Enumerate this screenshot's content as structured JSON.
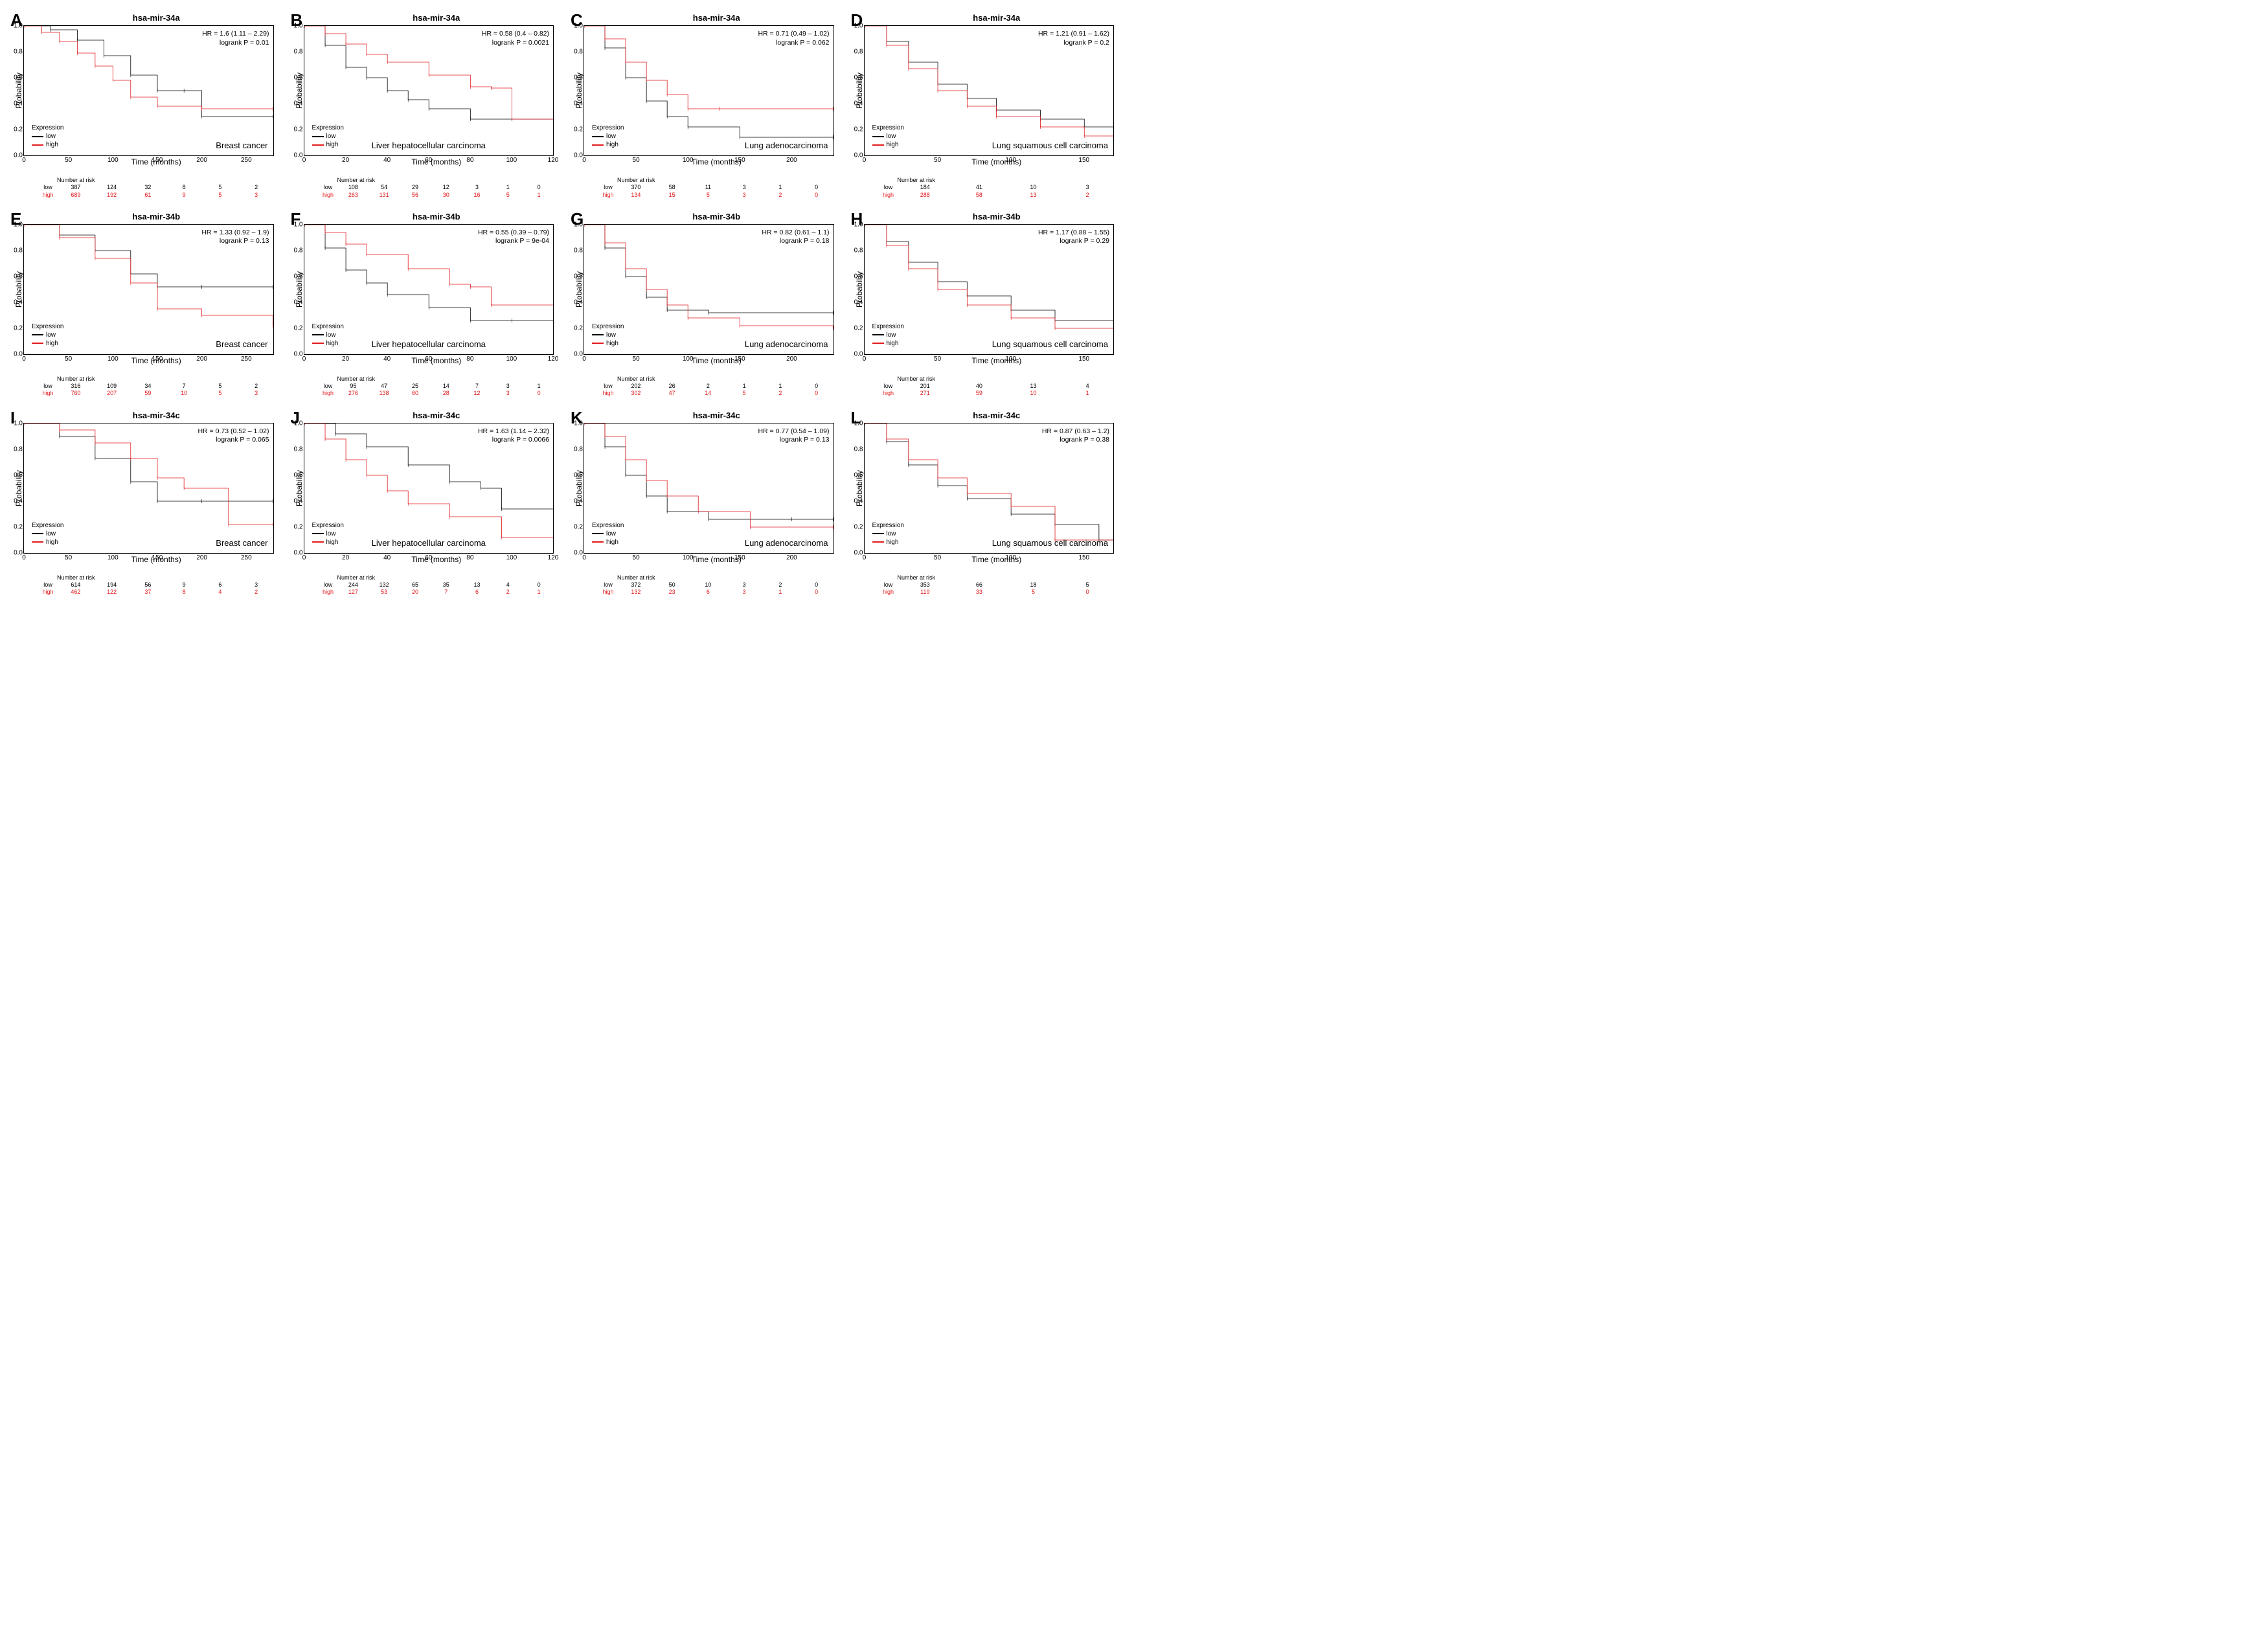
{
  "figure": {
    "ylabel": "Probability",
    "xlabel": "Time (months)",
    "legend_title": "Expression",
    "legend_low": "low",
    "legend_high": "high",
    "risk_header": "Number at risk",
    "low_label": "low",
    "high_label": "high",
    "color_low": "#000000",
    "color_high": "#e1191c",
    "background": "#ffffff",
    "border_color": "#000000",
    "yticks": [
      0.0,
      0.2,
      0.4,
      0.6,
      0.8,
      1.0
    ],
    "ytick_labels": [
      "0.0",
      "0.2",
      "0.4",
      "0.6",
      "0.8",
      "1.0"
    ],
    "axis_fontsize": 12,
    "title_fontsize": 13,
    "stats_fontsize": 10.5,
    "panel_letter_fontsize": 26
  },
  "panels": [
    {
      "letter": "A",
      "title": "hsa-mir-34a",
      "cancer": "Breast cancer",
      "cancer_pos": "br",
      "hr": "HR = 1.6 (1.11 – 2.29)",
      "logrank": "logrank P = 0.01",
      "xmax": 280,
      "xtick_step": 50,
      "risk_low": [
        "387",
        "124",
        "32",
        "8",
        "5",
        "2"
      ],
      "risk_high": [
        "689",
        "192",
        "61",
        "9",
        "5",
        "3"
      ],
      "low": [
        [
          0,
          1.0
        ],
        [
          30,
          0.97
        ],
        [
          60,
          0.89
        ],
        [
          90,
          0.77
        ],
        [
          120,
          0.62
        ],
        [
          150,
          0.5
        ],
        [
          180,
          0.5
        ],
        [
          200,
          0.3
        ],
        [
          280,
          0.3
        ]
      ],
      "high": [
        [
          0,
          1.0
        ],
        [
          20,
          0.95
        ],
        [
          40,
          0.88
        ],
        [
          60,
          0.79
        ],
        [
          80,
          0.69
        ],
        [
          100,
          0.58
        ],
        [
          120,
          0.45
        ],
        [
          150,
          0.38
        ],
        [
          200,
          0.36
        ],
        [
          280,
          0.36
        ]
      ]
    },
    {
      "letter": "B",
      "title": "hsa-mir-34a",
      "cancer": "Liver hepatocellular carcinoma",
      "cancer_pos": "bc",
      "hr": "HR = 0.58 (0.4 – 0.82)",
      "logrank": "logrank P = 0.0021",
      "xmax": 120,
      "xtick_step": 20,
      "risk_low": [
        "108",
        "54",
        "29",
        "12",
        "3",
        "1",
        "0"
      ],
      "risk_high": [
        "263",
        "131",
        "56",
        "30",
        "16",
        "5",
        "1"
      ],
      "low": [
        [
          0,
          1.0
        ],
        [
          10,
          0.85
        ],
        [
          20,
          0.68
        ],
        [
          30,
          0.6
        ],
        [
          40,
          0.5
        ],
        [
          50,
          0.43
        ],
        [
          60,
          0.36
        ],
        [
          80,
          0.28
        ],
        [
          100,
          0.28
        ],
        [
          120,
          0.22
        ]
      ],
      "high": [
        [
          0,
          1.0
        ],
        [
          10,
          0.94
        ],
        [
          20,
          0.86
        ],
        [
          30,
          0.78
        ],
        [
          40,
          0.72
        ],
        [
          60,
          0.62
        ],
        [
          80,
          0.53
        ],
        [
          90,
          0.52
        ],
        [
          100,
          0.28
        ],
        [
          120,
          0.2
        ]
      ]
    },
    {
      "letter": "C",
      "title": "hsa-mir-34a",
      "cancer": "Lung adenocarcinoma",
      "cancer_pos": "br",
      "hr": "HR = 0.71 (0.49 – 1.02)",
      "logrank": "logrank P = 0.062",
      "xmax": 240,
      "xtick_step": 50,
      "risk_low": [
        "370",
        "58",
        "11",
        "3",
        "1",
        "0"
      ],
      "risk_high": [
        "134",
        "15",
        "5",
        "3",
        "2",
        "0"
      ],
      "low": [
        [
          0,
          1.0
        ],
        [
          20,
          0.83
        ],
        [
          40,
          0.6
        ],
        [
          60,
          0.42
        ],
        [
          80,
          0.3
        ],
        [
          100,
          0.22
        ],
        [
          150,
          0.14
        ],
        [
          240,
          0.14
        ]
      ],
      "high": [
        [
          0,
          1.0
        ],
        [
          20,
          0.9
        ],
        [
          40,
          0.72
        ],
        [
          60,
          0.58
        ],
        [
          80,
          0.47
        ],
        [
          100,
          0.36
        ],
        [
          130,
          0.36
        ],
        [
          240,
          0.36
        ]
      ]
    },
    {
      "letter": "D",
      "title": "hsa-mir-34a",
      "cancer": "Lung squamous cell carcinoma",
      "cancer_pos": "br",
      "hr": "HR = 1.21 (0.91 – 1.62)",
      "logrank": "logrank P = 0.2",
      "xmax": 170,
      "xtick_step": 50,
      "risk_low": [
        "184",
        "41",
        "10",
        "3"
      ],
      "risk_high": [
        "288",
        "58",
        "13",
        "2"
      ],
      "low": [
        [
          0,
          1.0
        ],
        [
          15,
          0.88
        ],
        [
          30,
          0.72
        ],
        [
          50,
          0.55
        ],
        [
          70,
          0.44
        ],
        [
          90,
          0.35
        ],
        [
          120,
          0.28
        ],
        [
          150,
          0.22
        ],
        [
          170,
          0.22
        ]
      ],
      "high": [
        [
          0,
          1.0
        ],
        [
          15,
          0.85
        ],
        [
          30,
          0.67
        ],
        [
          50,
          0.5
        ],
        [
          70,
          0.38
        ],
        [
          90,
          0.3
        ],
        [
          120,
          0.22
        ],
        [
          150,
          0.15
        ],
        [
          170,
          0.08
        ]
      ]
    },
    {
      "letter": "E",
      "title": "hsa-mir-34b",
      "cancer": "Breast cancer",
      "cancer_pos": "br",
      "hr": "HR = 1.33 (0.92 – 1.9)",
      "logrank": "logrank P = 0.13",
      "xmax": 280,
      "xtick_step": 50,
      "risk_low": [
        "316",
        "109",
        "34",
        "7",
        "5",
        "2"
      ],
      "risk_high": [
        "760",
        "207",
        "59",
        "10",
        "5",
        "3"
      ],
      "low": [
        [
          0,
          1.0
        ],
        [
          40,
          0.92
        ],
        [
          80,
          0.8
        ],
        [
          120,
          0.62
        ],
        [
          150,
          0.52
        ],
        [
          200,
          0.52
        ],
        [
          280,
          0.52
        ]
      ],
      "high": [
        [
          0,
          1.0
        ],
        [
          40,
          0.9
        ],
        [
          80,
          0.74
        ],
        [
          120,
          0.55
        ],
        [
          150,
          0.35
        ],
        [
          200,
          0.3
        ],
        [
          280,
          0.22
        ]
      ]
    },
    {
      "letter": "F",
      "title": "hsa-mir-34b",
      "cancer": "Liver hepatocellular carcinoma",
      "cancer_pos": "bc",
      "hr": "HR = 0.55 (0.39 – 0.79)",
      "logrank": "logrank P = 9e-04",
      "xmax": 120,
      "xtick_step": 20,
      "risk_low": [
        "95",
        "47",
        "25",
        "14",
        "7",
        "3",
        "1"
      ],
      "risk_high": [
        "276",
        "138",
        "60",
        "28",
        "12",
        "3",
        "0"
      ],
      "low": [
        [
          0,
          1.0
        ],
        [
          10,
          0.82
        ],
        [
          20,
          0.65
        ],
        [
          30,
          0.55
        ],
        [
          40,
          0.46
        ],
        [
          60,
          0.36
        ],
        [
          80,
          0.26
        ],
        [
          100,
          0.26
        ],
        [
          120,
          0.2
        ]
      ],
      "high": [
        [
          0,
          1.0
        ],
        [
          10,
          0.94
        ],
        [
          20,
          0.85
        ],
        [
          30,
          0.77
        ],
        [
          50,
          0.66
        ],
        [
          70,
          0.54
        ],
        [
          80,
          0.52
        ],
        [
          90,
          0.38
        ],
        [
          120,
          0.25
        ]
      ]
    },
    {
      "letter": "G",
      "title": "hsa-mir-34b",
      "cancer": "Lung adenocarcinoma",
      "cancer_pos": "br",
      "hr": "HR = 0.82 (0.61 – 1.1)",
      "logrank": "logrank P = 0.18",
      "xmax": 240,
      "xtick_step": 50,
      "risk_low": [
        "202",
        "26",
        "2",
        "1",
        "1",
        "0"
      ],
      "risk_high": [
        "302",
        "47",
        "14",
        "5",
        "2",
        "0"
      ],
      "low": [
        [
          0,
          1.0
        ],
        [
          20,
          0.82
        ],
        [
          40,
          0.6
        ],
        [
          60,
          0.44
        ],
        [
          80,
          0.34
        ],
        [
          120,
          0.32
        ],
        [
          240,
          0.32
        ]
      ],
      "high": [
        [
          0,
          1.0
        ],
        [
          20,
          0.86
        ],
        [
          40,
          0.66
        ],
        [
          60,
          0.5
        ],
        [
          80,
          0.38
        ],
        [
          100,
          0.28
        ],
        [
          150,
          0.22
        ],
        [
          240,
          0.2
        ]
      ]
    },
    {
      "letter": "H",
      "title": "hsa-mir-34b",
      "cancer": "Lung squamous cell carcinoma",
      "cancer_pos": "br",
      "hr": "HR = 1.17 (0.88 – 1.55)",
      "logrank": "logrank P = 0.29",
      "xmax": 170,
      "xtick_step": 50,
      "risk_low": [
        "201",
        "40",
        "13",
        "4"
      ],
      "risk_high": [
        "271",
        "59",
        "10",
        "1"
      ],
      "low": [
        [
          0,
          1.0
        ],
        [
          15,
          0.87
        ],
        [
          30,
          0.71
        ],
        [
          50,
          0.56
        ],
        [
          70,
          0.45
        ],
        [
          100,
          0.34
        ],
        [
          130,
          0.26
        ],
        [
          170,
          0.26
        ]
      ],
      "high": [
        [
          0,
          1.0
        ],
        [
          15,
          0.84
        ],
        [
          30,
          0.66
        ],
        [
          50,
          0.5
        ],
        [
          70,
          0.38
        ],
        [
          100,
          0.28
        ],
        [
          130,
          0.2
        ],
        [
          170,
          0.14
        ]
      ]
    },
    {
      "letter": "I",
      "title": "hsa-mir-34c",
      "cancer": "Breast cancer",
      "cancer_pos": "br",
      "hr": "HR = 0.73 (0.52 – 1.02)",
      "logrank": "logrank P = 0.065",
      "xmax": 280,
      "xtick_step": 50,
      "risk_low": [
        "614",
        "194",
        "56",
        "9",
        "6",
        "3"
      ],
      "risk_high": [
        "462",
        "122",
        "37",
        "8",
        "4",
        "2"
      ],
      "low": [
        [
          0,
          1.0
        ],
        [
          40,
          0.9
        ],
        [
          80,
          0.73
        ],
        [
          120,
          0.55
        ],
        [
          150,
          0.4
        ],
        [
          200,
          0.4
        ],
        [
          280,
          0.4
        ]
      ],
      "high": [
        [
          0,
          1.0
        ],
        [
          40,
          0.95
        ],
        [
          80,
          0.85
        ],
        [
          120,
          0.73
        ],
        [
          150,
          0.58
        ],
        [
          180,
          0.5
        ],
        [
          230,
          0.22
        ],
        [
          280,
          0.22
        ]
      ]
    },
    {
      "letter": "J",
      "title": "hsa-mir-34c",
      "cancer": "Liver hepatocellular carcinoma",
      "cancer_pos": "bc",
      "hr": "HR = 1.63 (1.14 – 2.32)",
      "logrank": "logrank P = 0.0066",
      "xmax": 120,
      "xtick_step": 20,
      "risk_low": [
        "244",
        "132",
        "65",
        "35",
        "13",
        "4",
        "0"
      ],
      "risk_high": [
        "127",
        "53",
        "20",
        "7",
        "6",
        "2",
        "1"
      ],
      "low": [
        [
          0,
          1.0
        ],
        [
          15,
          0.92
        ],
        [
          30,
          0.82
        ],
        [
          50,
          0.68
        ],
        [
          70,
          0.55
        ],
        [
          85,
          0.5
        ],
        [
          95,
          0.34
        ],
        [
          120,
          0.25
        ]
      ],
      "high": [
        [
          0,
          1.0
        ],
        [
          10,
          0.88
        ],
        [
          20,
          0.72
        ],
        [
          30,
          0.6
        ],
        [
          40,
          0.48
        ],
        [
          50,
          0.38
        ],
        [
          70,
          0.28
        ],
        [
          95,
          0.12
        ],
        [
          120,
          0.12
        ]
      ]
    },
    {
      "letter": "K",
      "title": "hsa-mir-34c",
      "cancer": "Lung adenocarcinoma",
      "cancer_pos": "br",
      "hr": "HR = 0.77 (0.54 – 1.09)",
      "logrank": "logrank P = 0.13",
      "xmax": 240,
      "xtick_step": 50,
      "risk_low": [
        "372",
        "50",
        "10",
        "3",
        "2",
        "0"
      ],
      "risk_high": [
        "132",
        "23",
        "6",
        "3",
        "1",
        "0"
      ],
      "low": [
        [
          0,
          1.0
        ],
        [
          20,
          0.82
        ],
        [
          40,
          0.6
        ],
        [
          60,
          0.44
        ],
        [
          80,
          0.32
        ],
        [
          120,
          0.26
        ],
        [
          200,
          0.26
        ],
        [
          240,
          0.26
        ]
      ],
      "high": [
        [
          0,
          1.0
        ],
        [
          20,
          0.9
        ],
        [
          40,
          0.72
        ],
        [
          60,
          0.56
        ],
        [
          80,
          0.44
        ],
        [
          110,
          0.32
        ],
        [
          160,
          0.2
        ],
        [
          240,
          0.2
        ]
      ]
    },
    {
      "letter": "L",
      "title": "hsa-mir-34c",
      "cancer": "Lung squamous cell carcinoma",
      "cancer_pos": "br",
      "hr": "HR = 0.87 (0.63 – 1.2)",
      "logrank": "logrank P = 0.38",
      "xmax": 170,
      "xtick_step": 50,
      "risk_low": [
        "353",
        "66",
        "18",
        "5"
      ],
      "risk_high": [
        "119",
        "33",
        "5",
        "0"
      ],
      "low": [
        [
          0,
          1.0
        ],
        [
          15,
          0.86
        ],
        [
          30,
          0.68
        ],
        [
          50,
          0.52
        ],
        [
          70,
          0.42
        ],
        [
          100,
          0.3
        ],
        [
          130,
          0.22
        ],
        [
          160,
          0.1
        ],
        [
          170,
          0.1
        ]
      ],
      "high": [
        [
          0,
          1.0
        ],
        [
          15,
          0.88
        ],
        [
          30,
          0.72
        ],
        [
          50,
          0.58
        ],
        [
          70,
          0.46
        ],
        [
          100,
          0.36
        ],
        [
          130,
          0.1
        ],
        [
          170,
          0.1
        ]
      ]
    }
  ]
}
